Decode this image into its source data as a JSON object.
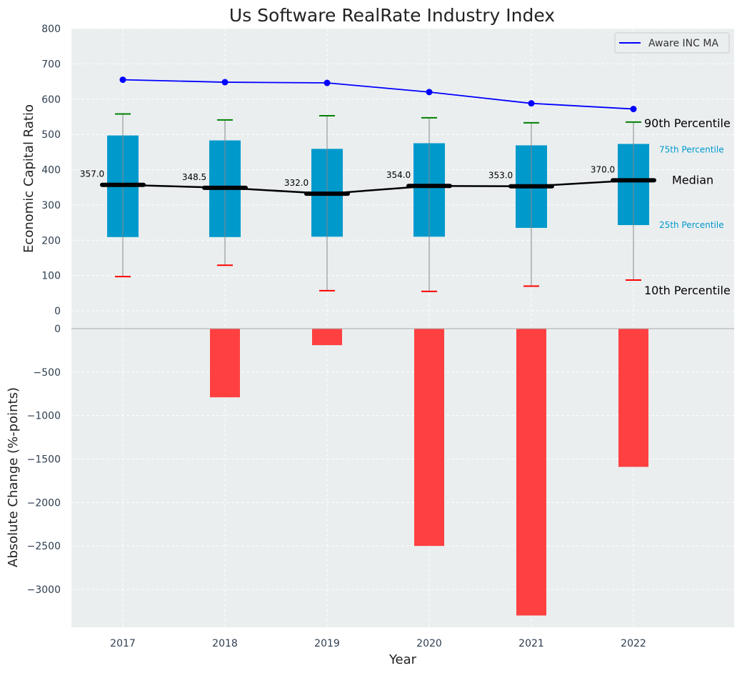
{
  "chart_data": [
    {
      "type": "box",
      "title": "Us Software RealRate Industry Index",
      "ylabel": "Economic Capital Ratio",
      "ylim": [
        0,
        800
      ],
      "yticks": [
        0,
        100,
        200,
        300,
        400,
        500,
        600,
        700,
        800
      ],
      "categories": [
        "2017",
        "2018",
        "2019",
        "2020",
        "2021",
        "2022"
      ],
      "percentiles": {
        "p10": [
          97,
          129,
          57,
          55,
          70,
          87
        ],
        "p25": [
          209,
          209,
          210,
          210,
          235,
          243
        ],
        "median": [
          357.0,
          348.5,
          332.0,
          354.0,
          353.0,
          370.0
        ],
        "p75": [
          497,
          483,
          459,
          475,
          469,
          473
        ],
        "p90": [
          558,
          541,
          553,
          547,
          533,
          535
        ]
      },
      "median_labels": [
        "357.0",
        "348.5",
        "332.0",
        "354.0",
        "353.0",
        "370.0"
      ],
      "company_series": {
        "name": "Aware INC MA",
        "values": [
          655,
          648,
          646,
          620,
          588,
          572
        ],
        "color": "#0000ff"
      },
      "annotations": {
        "p90": "90th Percentile",
        "p75": "75th Percentile",
        "median": "Median",
        "p25": "25th Percentile",
        "p10": "10th Percentile"
      },
      "colors": {
        "box": "#0099cc",
        "median": "#000000",
        "p90_cap": "#008000",
        "p10_cap": "#ff0000",
        "whisker": "#888888",
        "background": "#eaeeef"
      },
      "grid": true,
      "legend_position": "top-right"
    },
    {
      "type": "bar",
      "ylabel": "Absolute Change (%-points)",
      "xlabel": "Year",
      "ylim": [
        -3450,
        0
      ],
      "yticks": [
        0,
        -500,
        -1000,
        -1500,
        -2000,
        -2500,
        -3000
      ],
      "ytick_labels": [
        "0",
        "−500",
        "−1000",
        "−1500",
        "−2000",
        "−2500",
        "−3000"
      ],
      "categories": [
        "2017",
        "2018",
        "2019",
        "2020",
        "2021",
        "2022"
      ],
      "values": [
        0,
        -790,
        -190,
        -2500,
        -3300,
        -1590
      ],
      "color": "#ff4040",
      "grid": true
    }
  ]
}
